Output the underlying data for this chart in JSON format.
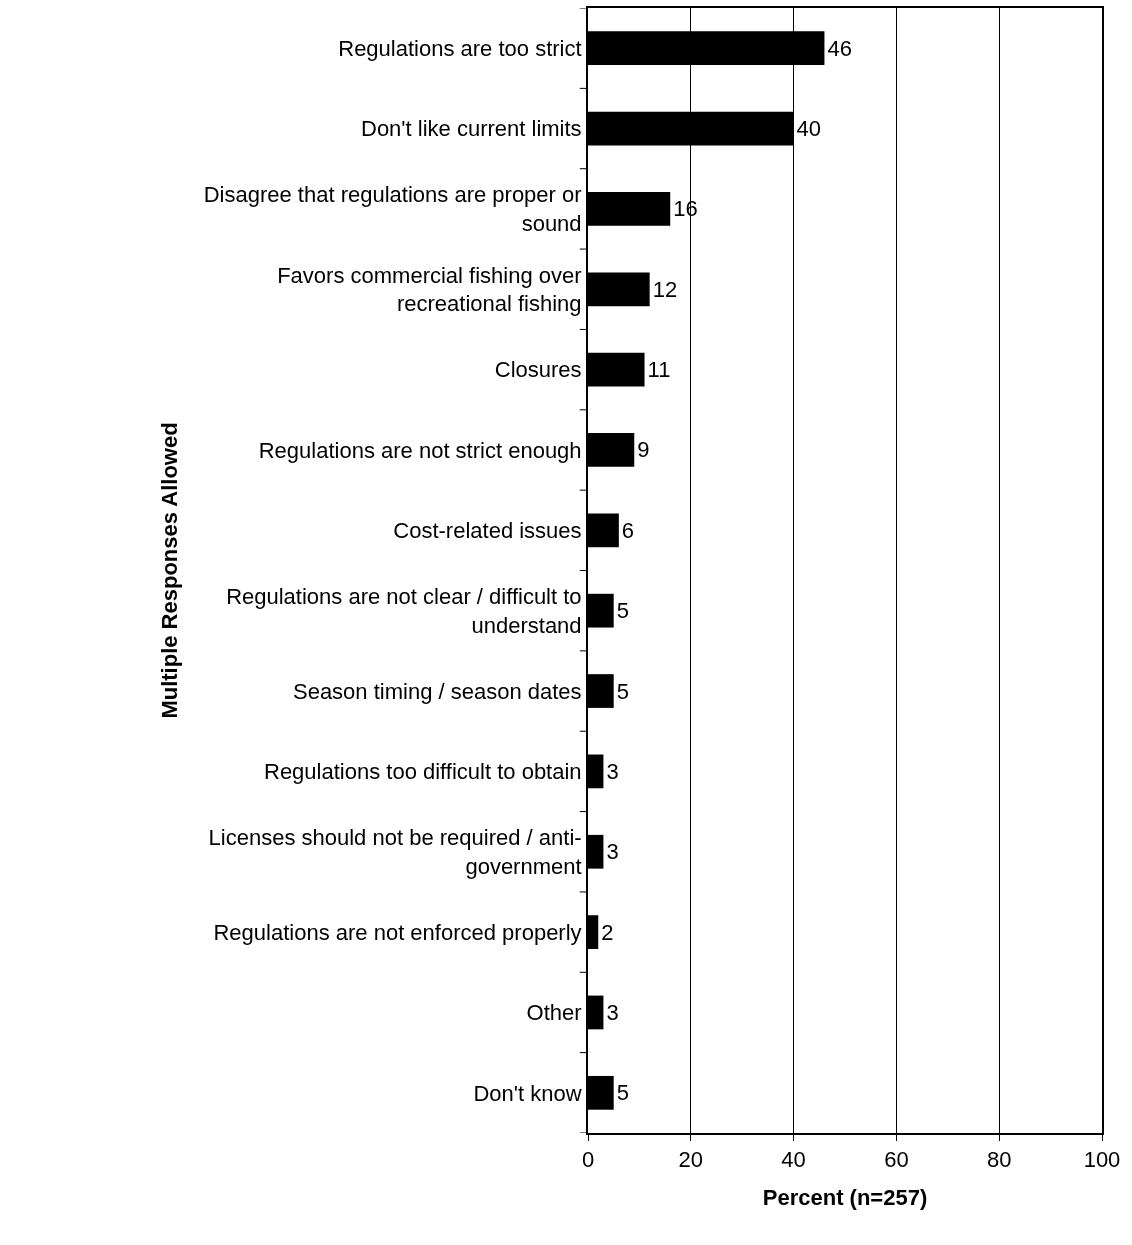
{
  "chart_data": {
    "type": "bar",
    "orientation": "horizontal",
    "xlabel": "Percent (n=257)",
    "ylabel": "Multiple Responses Allowed",
    "categories": [
      "Regulations are too strict",
      "Don't like current limits",
      "Disagree that regulations are proper or sound",
      "Favors commercial fishing over recreational fishing",
      "Closures",
      "Regulations are not strict enough",
      "Cost-related issues",
      "Regulations are not clear / difficult to understand",
      "Season timing / season dates",
      "Regulations too difficult to obtain",
      "Licenses should not be required / anti-government",
      "Regulations are not enforced properly",
      "Other",
      "Don't know"
    ],
    "values": [
      46,
      40,
      16,
      12,
      11,
      9,
      6,
      5,
      5,
      3,
      3,
      2,
      3,
      5
    ],
    "color": "#000000",
    "data_labels": true,
    "xlim": [
      0,
      100
    ],
    "xticks": [
      0,
      20,
      40,
      60,
      80,
      100
    ],
    "grid": "x",
    "legend": false
  }
}
